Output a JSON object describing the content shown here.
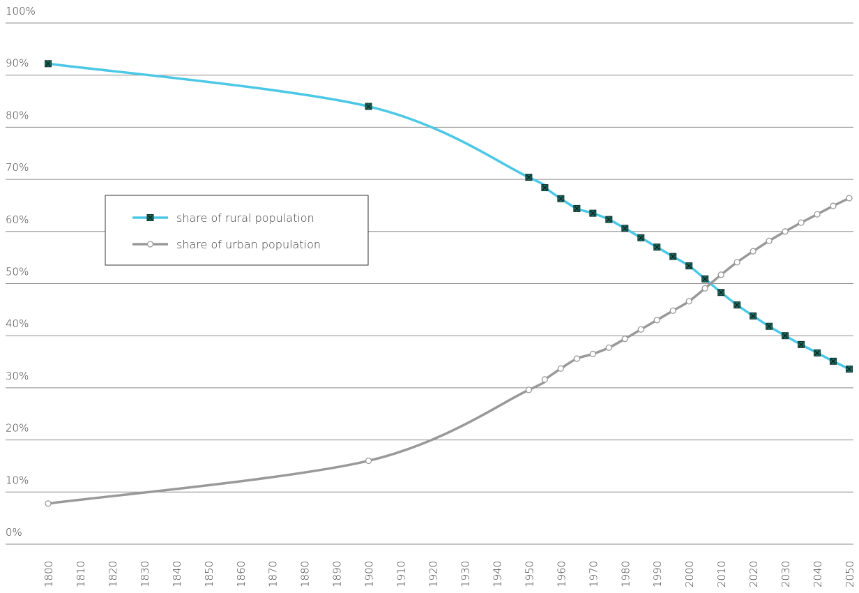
{
  "chart_data": {
    "type": "line",
    "ylim": [
      0,
      100
    ],
    "y_ticks": [
      "0%",
      "10%",
      "20%",
      "30%",
      "40%",
      "50%",
      "60%",
      "70%",
      "80%",
      "90%",
      "100%"
    ],
    "y_tick_values": [
      0,
      10,
      20,
      30,
      40,
      50,
      60,
      70,
      80,
      90,
      100
    ],
    "xlim": [
      1800,
      2050
    ],
    "x_ticks": [
      "1800",
      "1810",
      "1820",
      "1830",
      "1840",
      "1850",
      "1860",
      "1870",
      "1880",
      "1890",
      "1900",
      "1910",
      "1920",
      "1930",
      "1940",
      "1950",
      "1960",
      "1970",
      "1980",
      "1990",
      "2000",
      "2010",
      "2020",
      "2030",
      "2040",
      "2050"
    ],
    "grid": true,
    "legend_placement": "middle-left",
    "series": [
      {
        "name": "share of rural population",
        "color": "#4cc8e6",
        "marker": "boxed-x",
        "x": [
          1800,
          1900,
          1950,
          1955,
          1960,
          1965,
          1970,
          1975,
          1980,
          1985,
          1990,
          1995,
          2000,
          2005,
          2010,
          2015,
          2020,
          2025,
          2030,
          2035,
          2040,
          2045,
          2050
        ],
        "values": [
          92.2,
          84.0,
          70.4,
          68.4,
          66.3,
          64.4,
          63.5,
          62.3,
          60.6,
          58.8,
          57.0,
          55.2,
          53.4,
          50.9,
          48.3,
          45.9,
          43.8,
          41.8,
          40.0,
          38.3,
          36.7,
          35.1,
          33.6
        ]
      },
      {
        "name": "share of urban population",
        "color": "#999999",
        "marker": "open-circle",
        "x": [
          1800,
          1900,
          1950,
          1955,
          1960,
          1965,
          1970,
          1975,
          1980,
          1985,
          1990,
          1995,
          2000,
          2005,
          2010,
          2015,
          2020,
          2025,
          2030,
          2035,
          2040,
          2045,
          2050
        ],
        "values": [
          7.8,
          16.0,
          29.6,
          31.6,
          33.7,
          35.6,
          36.5,
          37.7,
          39.4,
          41.2,
          43.0,
          44.8,
          46.6,
          49.1,
          51.7,
          54.1,
          56.2,
          58.2,
          60.0,
          61.7,
          63.3,
          64.9,
          66.4
        ]
      }
    ]
  }
}
